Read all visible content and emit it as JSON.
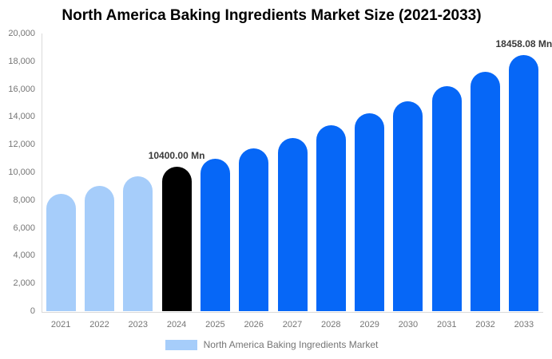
{
  "chart_data": {
    "type": "bar",
    "title": "North America Baking Ingredients Market Size (2021-2033)",
    "categories": [
      "2021",
      "2022",
      "2023",
      "2024",
      "2025",
      "2026",
      "2027",
      "2028",
      "2029",
      "2030",
      "2031",
      "2032",
      "2033"
    ],
    "values": [
      8450,
      9050,
      9730,
      10400,
      10950,
      11710,
      12460,
      13390,
      14260,
      15130,
      16230,
      17270,
      18458.08
    ],
    "bar_colors": [
      "#a6cdfa",
      "#a6cdfa",
      "#a6cdfa",
      "#000000",
      "#0667f7",
      "#0667f7",
      "#0667f7",
      "#0667f7",
      "#0667f7",
      "#0667f7",
      "#0667f7",
      "#0667f7",
      "#0667f7"
    ],
    "annotations": [
      {
        "category": "2024",
        "text": "10400.00 Mn"
      },
      {
        "category": "2033",
        "text": "18458.08 Mn"
      }
    ],
    "xlabel": "",
    "ylabel": "",
    "ylim": [
      0,
      20000
    ],
    "ytick_interval": 2000,
    "ytick_labels": [
      "0",
      "2,000",
      "4,000",
      "6,000",
      "8,000",
      "10,000",
      "12,000",
      "14,000",
      "16,000",
      "18,000",
      "20,000"
    ],
    "grid": false,
    "legend_position": "bottom",
    "legend": {
      "items": [
        {
          "label": "North America Baking Ingredients Market",
          "color": "#a6cdfa"
        }
      ]
    }
  },
  "colors": {
    "background": "#ffffff",
    "axis_line": "#d9d9d9",
    "tick_text": "#757575",
    "annotation_text": "#3a3a3a",
    "title_text": "#000000",
    "series_historical": "#a6cdfa",
    "series_current": "#000000",
    "series_forecast": "#0667f7"
  }
}
